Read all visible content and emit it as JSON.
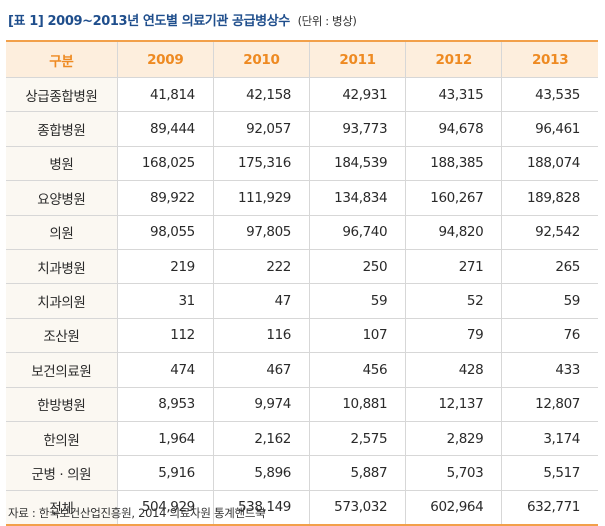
{
  "title": "[표 1] 2009~2013년 연도별 의료기관 공급병상수",
  "unit": "(단위 : 병상)",
  "header": {
    "label": "구분",
    "years": [
      "2009",
      "2010",
      "2011",
      "2012",
      "2013"
    ]
  },
  "rows": [
    {
      "label": "상급종합병원",
      "values": [
        "41,814",
        "42,158",
        "42,931",
        "43,315",
        "43,535"
      ]
    },
    {
      "label": "종합병원",
      "values": [
        "89,444",
        "92,057",
        "93,773",
        "94,678",
        "96,461"
      ]
    },
    {
      "label": "병원",
      "values": [
        "168,025",
        "175,316",
        "184,539",
        "188,385",
        "188,074"
      ]
    },
    {
      "label": "요양병원",
      "values": [
        "89,922",
        "111,929",
        "134,834",
        "160,267",
        "189,828"
      ]
    },
    {
      "label": "의원",
      "values": [
        "98,055",
        "97,805",
        "96,740",
        "94,820",
        "92,542"
      ]
    },
    {
      "label": "치과병원",
      "values": [
        "219",
        "222",
        "250",
        "271",
        "265"
      ]
    },
    {
      "label": "치과의원",
      "values": [
        "31",
        "47",
        "59",
        "52",
        "59"
      ]
    },
    {
      "label": "조산원",
      "values": [
        "112",
        "116",
        "107",
        "79",
        "76"
      ]
    },
    {
      "label": "보건의료원",
      "values": [
        "474",
        "467",
        "456",
        "428",
        "433"
      ]
    },
    {
      "label": "한방병원",
      "values": [
        "8,953",
        "9,974",
        "10,881",
        "12,137",
        "12,807"
      ]
    },
    {
      "label": "한의원",
      "values": [
        "1,964",
        "2,162",
        "2,575",
        "2,829",
        "3,174"
      ]
    },
    {
      "label": "군병 · 의원",
      "values": [
        "5,916",
        "5,896",
        "5,887",
        "5,703",
        "5,517"
      ]
    },
    {
      "label": "전체",
      "values": [
        "504,929",
        "538,149",
        "573,032",
        "602,964",
        "632,771"
      ]
    }
  ],
  "source": "자료 : 한국보건산업진흥원, 2014 의료자원 통계핸드북",
  "colors": {
    "title": "#1f4e8c",
    "accent": "#f2a04a",
    "header_text": "#ee8a22",
    "header_bg": "#fdeedd"
  }
}
